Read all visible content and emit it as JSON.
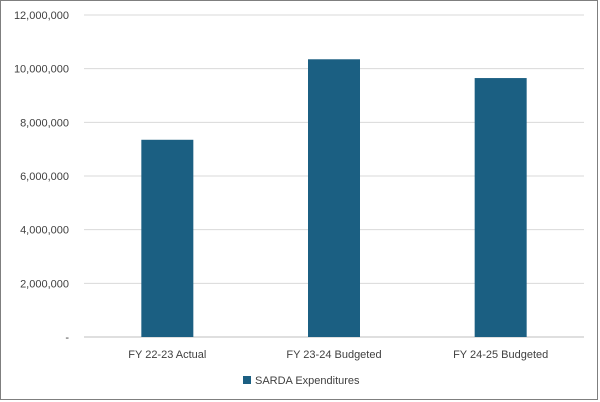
{
  "chart_data": {
    "type": "bar",
    "categories": [
      "FY 22-23 Actual",
      "FY 23-24 Budgeted",
      "FY 24-25 Budgeted"
    ],
    "series": [
      {
        "name": "SARDA Expenditures",
        "values": [
          7350000,
          10350000,
          9650000
        ],
        "color": "#1b5f82"
      }
    ],
    "ylim": [
      0,
      12000000
    ],
    "yticks": [
      0,
      2000000,
      4000000,
      6000000,
      8000000,
      10000000,
      12000000
    ],
    "ytick_labels": [
      "-",
      "2,000,000",
      "4,000,000",
      "6,000,000",
      "8,000,000",
      "10,000,000",
      "12,000,000"
    ],
    "grid": true,
    "legend_position": "bottom"
  }
}
